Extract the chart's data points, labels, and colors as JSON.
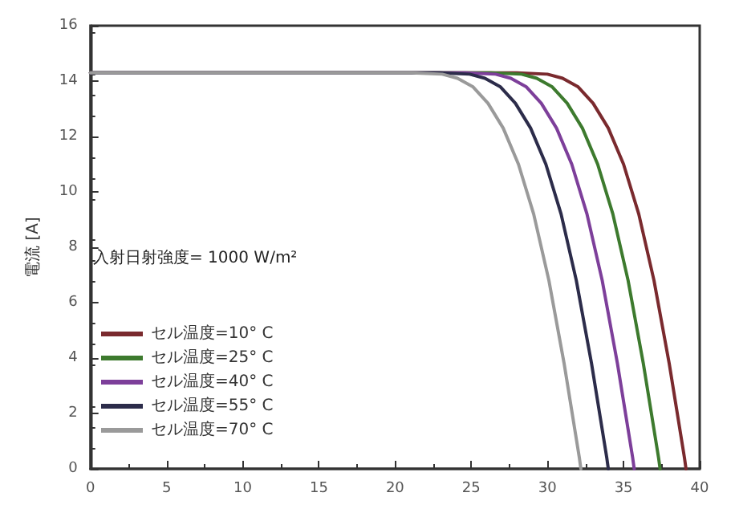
{
  "chart_data": {
    "type": "line",
    "ylabel": "電流 [A]",
    "annotations": [
      "入射日射強度= 1000 W/m²"
    ],
    "xlim": [
      0,
      40
    ],
    "xticks": [
      0,
      5,
      10,
      15,
      20,
      25,
      30,
      35,
      40
    ],
    "ylim": [
      0,
      16
    ],
    "yticks": [
      0,
      2,
      4,
      6,
      8,
      10,
      12,
      14,
      16
    ],
    "grid": false,
    "legend": "left",
    "marker": "none",
    "line_style": "solid",
    "series": [
      {
        "name": "セル温度=10° C",
        "color": "#7a2a2e",
        "x": [
          0,
          28,
          30,
          31,
          32,
          33,
          34,
          35,
          36,
          37,
          38,
          39,
          39.1
        ],
        "values": [
          14.3,
          14.3,
          14.25,
          14.1,
          13.8,
          13.2,
          12.3,
          11.0,
          9.2,
          6.8,
          3.8,
          0.4,
          0
        ]
      },
      {
        "name": "セル温度=25° C",
        "color": "#3d7a2e",
        "x": [
          0,
          26.3,
          28.3,
          29.3,
          30.3,
          31.3,
          32.3,
          33.3,
          34.3,
          35.3,
          36.3,
          37.3,
          37.4
        ],
        "values": [
          14.3,
          14.3,
          14.25,
          14.1,
          13.8,
          13.2,
          12.3,
          11.0,
          9.2,
          6.8,
          3.8,
          0.4,
          0
        ]
      },
      {
        "name": "セル温度=40° C",
        "color": "#7d3f9a",
        "x": [
          0,
          24.6,
          26.6,
          27.6,
          28.6,
          29.6,
          30.6,
          31.6,
          32.6,
          33.6,
          34.6,
          35.6,
          35.7
        ],
        "values": [
          14.3,
          14.3,
          14.25,
          14.1,
          13.8,
          13.2,
          12.3,
          11.0,
          9.2,
          6.8,
          3.8,
          0.4,
          0
        ]
      },
      {
        "name": "セル温度=55° C",
        "color": "#2c2c4a",
        "x": [
          0,
          22.9,
          24.9,
          25.9,
          26.9,
          27.9,
          28.9,
          29.9,
          30.9,
          31.9,
          32.9,
          33.9,
          34.0
        ],
        "values": [
          14.3,
          14.3,
          14.25,
          14.1,
          13.8,
          13.2,
          12.3,
          11.0,
          9.2,
          6.8,
          3.8,
          0.4,
          0
        ]
      },
      {
        "name": "セル温度=70° C",
        "color": "#9a9a9a",
        "x": [
          0,
          21.1,
          23.1,
          24.1,
          25.1,
          26.1,
          27.1,
          28.1,
          29.1,
          30.1,
          31.1,
          32.1,
          32.2
        ],
        "values": [
          14.3,
          14.3,
          14.25,
          14.1,
          13.8,
          13.2,
          12.3,
          11.0,
          9.2,
          6.8,
          3.8,
          0.4,
          0
        ]
      }
    ]
  }
}
